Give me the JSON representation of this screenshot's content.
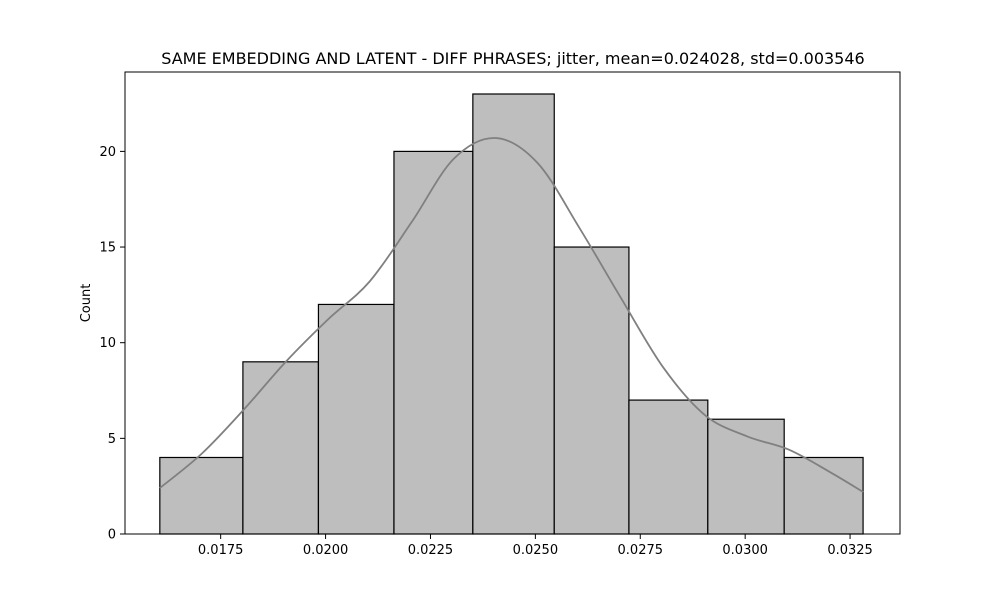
{
  "chart_data": {
    "type": "bar",
    "title": "SAME EMBEDDING AND LATENT - DIFF PHRASES; jitter, mean=0.024028, std=0.003546",
    "xlabel": "",
    "ylabel": "Count",
    "bin_edges": [
      0.01605,
      0.01803,
      0.01983,
      0.02163,
      0.02351,
      0.02545,
      0.02723,
      0.02911,
      0.03093,
      0.03281
    ],
    "values": [
      4,
      9,
      12,
      20,
      23,
      15,
      7,
      6,
      4
    ],
    "xlim": [
      0.01522,
      0.03369
    ],
    "ylim": [
      0,
      24.15
    ],
    "xticks": [
      0.0175,
      0.02,
      0.0225,
      0.025,
      0.0275,
      0.03,
      0.0325
    ],
    "xtick_labels": [
      "0.0175",
      "0.0200",
      "0.0225",
      "0.0250",
      "0.0275",
      "0.0300",
      "0.0325"
    ],
    "yticks": [
      0,
      5,
      10,
      15,
      20
    ],
    "ytick_labels": [
      "0",
      "5",
      "10",
      "15",
      "20"
    ],
    "kde": {
      "x": [
        0.01605,
        0.01705,
        0.01805,
        0.01905,
        0.02005,
        0.02105,
        0.02205,
        0.02305,
        0.02405,
        0.02505,
        0.02605,
        0.02705,
        0.02805,
        0.02905,
        0.03005,
        0.03105,
        0.03205,
        0.03281
      ],
      "y": [
        2.4,
        4.2,
        6.5,
        9.0,
        11.2,
        13.2,
        16.3,
        19.6,
        20.7,
        19.4,
        16.0,
        12.3,
        8.7,
        6.2,
        5.1,
        4.4,
        3.2,
        2.2
      ]
    },
    "grid": false,
    "colors": {
      "bar_fill": "#bebebe",
      "bar_edge": "#000000",
      "kde_line": "#808080"
    }
  }
}
